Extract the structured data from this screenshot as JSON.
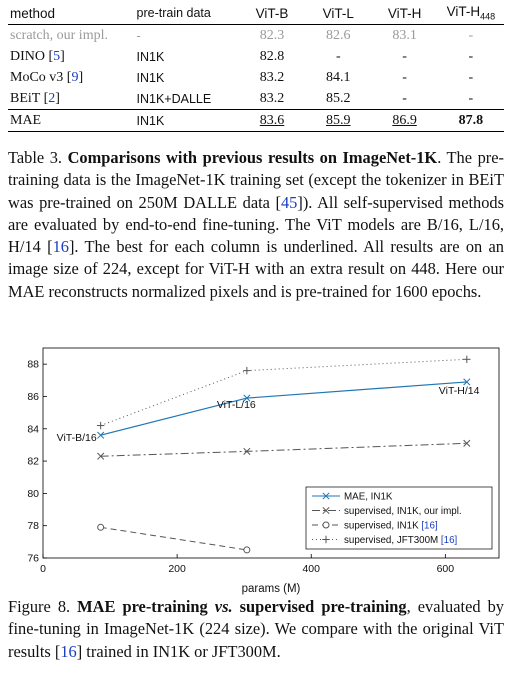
{
  "table": {
    "headers": [
      "method",
      "pre-train data",
      "ViT-B",
      "ViT-L",
      "ViT-H",
      "ViT-H",
      "448"
    ],
    "rows": [
      {
        "method": "scratch, our impl.",
        "cite": "",
        "data": "-",
        "b": "82.3",
        "l": "82.6",
        "h": "83.1",
        "h448": "-"
      },
      {
        "method": "DINO",
        "cite": "5",
        "data": "IN1K",
        "b": "82.8",
        "l": "-",
        "h": "-",
        "h448": "-"
      },
      {
        "method": "MoCo v3",
        "cite": "9",
        "data": "IN1K",
        "b": "83.2",
        "l": "84.1",
        "h": "-",
        "h448": "-"
      },
      {
        "method": "BEiT",
        "cite": "2",
        "data": "IN1K+DALLE",
        "b": "83.2",
        "l": "85.2",
        "h": "-",
        "h448": "-"
      },
      {
        "method": "MAE",
        "cite": "",
        "data": "IN1K",
        "b": "83.6",
        "l": "85.9",
        "h": "86.9",
        "h448": "87.8"
      }
    ]
  },
  "caption1": {
    "label": "Table 3.",
    "title": "Comparisons with previous results on ImageNet-1K",
    "text_a": ". The pre-training data is the ImageNet-1K training set (except the tokenizer in BEiT was pre-trained on 250M DALLE data [",
    "ref_a": "45",
    "text_b": "]). All self-supervised methods are evaluated by end-to-end fine-tuning. The ViT models are B/16, L/16, H/14 [",
    "ref_b": "16",
    "text_c": "]. The best for each column is underlined. All results are on an image size of 224, except for ViT-H with an extra result on 448. Here our MAE reconstructs normalized pixels and is pre-trained for 1600 epochs."
  },
  "chart_data": {
    "type": "line",
    "xlabel": "params (M)",
    "ylabel": "",
    "xlim": [
      0,
      680
    ],
    "ylim": [
      76,
      89
    ],
    "xticks": [
      0,
      200,
      400,
      600
    ],
    "yticks": [
      76,
      78,
      80,
      82,
      84,
      86,
      88
    ],
    "grid": false,
    "legend_position": "bottom-right",
    "series": [
      {
        "name": "MAE, IN1K",
        "color": "#1f77b4",
        "dash": "",
        "marker": "x",
        "x": [
          86,
          304,
          632
        ],
        "y": [
          83.6,
          85.9,
          86.9
        ]
      },
      {
        "name": "supervised, IN1K, our impl.",
        "color": "#555555",
        "dash": "8,3,2,3",
        "marker": "x",
        "x": [
          86,
          304,
          632
        ],
        "y": [
          82.3,
          82.6,
          83.1
        ]
      },
      {
        "name": "supervised, IN1K",
        "cite": "16",
        "color": "#555555",
        "dash": "6,4",
        "marker": "o",
        "x": [
          86,
          304
        ],
        "y": [
          77.9,
          76.5
        ]
      },
      {
        "name": "supervised, JFT300M",
        "cite": "16",
        "color": "#555555",
        "dash": "1,3",
        "marker": "+",
        "x": [
          86,
          304,
          632
        ],
        "y": [
          84.2,
          87.6,
          88.3
        ]
      }
    ],
    "annotations": [
      {
        "text": "ViT-B/16",
        "x": 86,
        "y": 83.6
      },
      {
        "text": "ViT-L/16",
        "x": 304,
        "y": 85.9
      },
      {
        "text": "ViT-H/14",
        "x": 632,
        "y": 86.9
      }
    ]
  },
  "caption2": {
    "label": "Figure 8.",
    "title_a": "MAE pre-training",
    "title_vs": "vs.",
    "title_b": "supervised pre-training",
    "text_a": ", evaluated by fine-tuning in ImageNet-1K (224 size). We compare with the original ViT results [",
    "ref": "16",
    "text_b": "] trained in IN1K or JFT300M."
  }
}
